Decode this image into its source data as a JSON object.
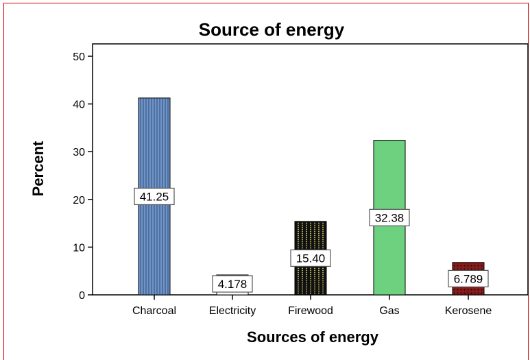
{
  "chart_data": {
    "type": "bar",
    "title": "Source of energy",
    "xlabel": "Sources of energy",
    "ylabel": "Percent",
    "ylim": [
      0,
      50
    ],
    "yticks": [
      0,
      10,
      20,
      30,
      40,
      50
    ],
    "grid": false,
    "legend": "none",
    "categories": [
      "Charcoal",
      "Electricity",
      "Firewood",
      "Gas",
      "Kerosene"
    ],
    "values": [
      41.25,
      4.178,
      15.4,
      32.38,
      6.789
    ],
    "value_labels": [
      "41.25",
      "4.178",
      "15.40",
      "32.38",
      "6.789"
    ],
    "bar_styles": [
      {
        "fill": "#6f93c4",
        "pattern": "vertical-lines"
      },
      {
        "fill": "#ffffff",
        "pattern": "none"
      },
      {
        "fill": "#111111",
        "pattern": "dotted-lines"
      },
      {
        "fill": "#6ed17f",
        "pattern": "none"
      },
      {
        "fill": "#8b1a1a",
        "pattern": "dots"
      }
    ]
  }
}
